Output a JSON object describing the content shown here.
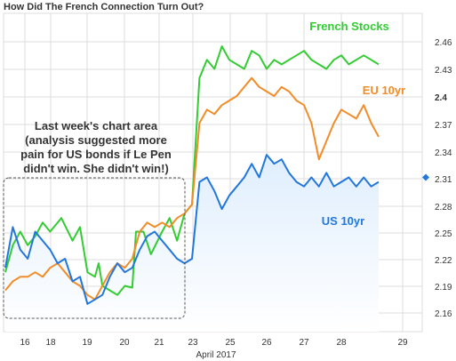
{
  "chart_data": {
    "type": "line",
    "title": "How Did The French Connection Turn Out?",
    "xlabel": "April 2017",
    "x_ticks": [
      "16",
      "18",
      "19",
      "20",
      "21",
      "23",
      "25",
      "26",
      "27",
      "28",
      "29"
    ],
    "y_ticks": [
      "2.46",
      "2.43",
      "2.4",
      "2.37",
      "2.34",
      "2.31",
      "2.28",
      "2.25",
      "2.22",
      "2.19",
      "2.16"
    ],
    "ylim": [
      2.148,
      2.48
    ],
    "xlim": [
      0,
      10.9
    ],
    "current_marker": 2.31,
    "annotation": [
      "Last week's chart area",
      "(analysis suggested more",
      "pain for US bonds if Le Pen",
      "didn't win.  She didn't win!)"
    ],
    "grid": true,
    "colors": {
      "french_stocks": "#33cc33",
      "eu_10yr": "#f28c28",
      "us_10yr": "#2277dd",
      "grid": "#dcdcdc"
    },
    "series": [
      {
        "name": "French Stocks",
        "color": "#33cc33",
        "points": [
          [
            0,
            2.205
          ],
          [
            0.2,
            2.235
          ],
          [
            0.4,
            2.25
          ],
          [
            0.6,
            2.235
          ],
          [
            0.8,
            2.245
          ],
          [
            1.0,
            2.26
          ],
          [
            1.2,
            2.25
          ],
          [
            1.5,
            2.265
          ],
          [
            1.8,
            2.24
          ],
          [
            2.0,
            2.255
          ],
          [
            2.2,
            2.205
          ],
          [
            2.4,
            2.2
          ],
          [
            2.5,
            2.215
          ],
          [
            2.6,
            2.19
          ],
          [
            2.8,
            2.185
          ],
          [
            3.0,
            2.18
          ],
          [
            3.2,
            2.19
          ],
          [
            3.4,
            2.188
          ],
          [
            3.5,
            2.25
          ],
          [
            3.7,
            2.25
          ],
          [
            3.9,
            2.225
          ],
          [
            4.2,
            2.25
          ],
          [
            4.4,
            2.265
          ],
          [
            4.6,
            2.24
          ],
          [
            4.8,
            2.27
          ],
          [
            5.0,
            2.28
          ],
          [
            5.2,
            2.42
          ],
          [
            5.4,
            2.44
          ],
          [
            5.6,
            2.43
          ],
          [
            5.8,
            2.455
          ],
          [
            6.0,
            2.44
          ],
          [
            6.2,
            2.435
          ],
          [
            6.4,
            2.43
          ],
          [
            6.6,
            2.45
          ],
          [
            6.8,
            2.445
          ],
          [
            7.0,
            2.43
          ],
          [
            7.2,
            2.44
          ],
          [
            7.4,
            2.435
          ],
          [
            7.6,
            2.44
          ],
          [
            7.8,
            2.445
          ],
          [
            8.0,
            2.45
          ],
          [
            8.2,
            2.44
          ],
          [
            8.4,
            2.435
          ],
          [
            8.6,
            2.43
          ],
          [
            8.8,
            2.44
          ],
          [
            9.0,
            2.445
          ],
          [
            9.2,
            2.435
          ],
          [
            9.4,
            2.44
          ],
          [
            9.6,
            2.445
          ],
          [
            9.8,
            2.44
          ],
          [
            10.0,
            2.435
          ]
        ]
      },
      {
        "name": "EU 10yr",
        "color": "#f28c28",
        "points": [
          [
            0,
            2.185
          ],
          [
            0.2,
            2.195
          ],
          [
            0.4,
            2.2
          ],
          [
            0.6,
            2.2
          ],
          [
            0.8,
            2.205
          ],
          [
            1.0,
            2.2
          ],
          [
            1.2,
            2.21
          ],
          [
            1.4,
            2.215
          ],
          [
            1.6,
            2.205
          ],
          [
            1.8,
            2.195
          ],
          [
            2.0,
            2.19
          ],
          [
            2.2,
            2.18
          ],
          [
            2.4,
            2.175
          ],
          [
            2.6,
            2.19
          ],
          [
            2.8,
            2.205
          ],
          [
            3.0,
            2.215
          ],
          [
            3.2,
            2.21
          ],
          [
            3.4,
            2.22
          ],
          [
            3.6,
            2.25
          ],
          [
            3.8,
            2.26
          ],
          [
            4.0,
            2.255
          ],
          [
            4.2,
            2.26
          ],
          [
            4.4,
            2.255
          ],
          [
            4.6,
            2.265
          ],
          [
            4.8,
            2.27
          ],
          [
            5.0,
            2.28
          ],
          [
            5.2,
            2.37
          ],
          [
            5.4,
            2.385
          ],
          [
            5.6,
            2.38
          ],
          [
            5.8,
            2.39
          ],
          [
            6.0,
            2.395
          ],
          [
            6.2,
            2.4
          ],
          [
            6.4,
            2.41
          ],
          [
            6.6,
            2.42
          ],
          [
            6.8,
            2.41
          ],
          [
            7.0,
            2.405
          ],
          [
            7.2,
            2.4
          ],
          [
            7.4,
            2.41
          ],
          [
            7.6,
            2.405
          ],
          [
            7.8,
            2.395
          ],
          [
            8.0,
            2.39
          ],
          [
            8.2,
            2.37
          ],
          [
            8.4,
            2.33
          ],
          [
            8.6,
            2.35
          ],
          [
            8.8,
            2.37
          ],
          [
            9.0,
            2.385
          ],
          [
            9.2,
            2.38
          ],
          [
            9.4,
            2.375
          ],
          [
            9.6,
            2.39
          ],
          [
            9.8,
            2.37
          ],
          [
            10.0,
            2.355
          ]
        ]
      },
      {
        "name": "US 10yr",
        "color": "#2277dd",
        "points": [
          [
            0,
            2.21
          ],
          [
            0.2,
            2.255
          ],
          [
            0.4,
            2.23
          ],
          [
            0.6,
            2.22
          ],
          [
            0.8,
            2.25
          ],
          [
            1.0,
            2.24
          ],
          [
            1.2,
            2.23
          ],
          [
            1.4,
            2.215
          ],
          [
            1.6,
            2.22
          ],
          [
            1.8,
            2.195
          ],
          [
            2.0,
            2.2
          ],
          [
            2.2,
            2.17
          ],
          [
            2.4,
            2.175
          ],
          [
            2.6,
            2.18
          ],
          [
            2.8,
            2.2
          ],
          [
            3.0,
            2.215
          ],
          [
            3.2,
            2.205
          ],
          [
            3.4,
            2.21
          ],
          [
            3.6,
            2.23
          ],
          [
            3.8,
            2.245
          ],
          [
            4.0,
            2.25
          ],
          [
            4.2,
            2.24
          ],
          [
            4.4,
            2.23
          ],
          [
            4.6,
            2.22
          ],
          [
            4.8,
            2.215
          ],
          [
            5.0,
            2.22
          ],
          [
            5.2,
            2.305
          ],
          [
            5.4,
            2.31
          ],
          [
            5.6,
            2.295
          ],
          [
            5.8,
            2.275
          ],
          [
            6.0,
            2.29
          ],
          [
            6.2,
            2.3
          ],
          [
            6.4,
            2.31
          ],
          [
            6.6,
            2.325
          ],
          [
            6.8,
            2.31
          ],
          [
            7.0,
            2.335
          ],
          [
            7.2,
            2.325
          ],
          [
            7.4,
            2.33
          ],
          [
            7.6,
            2.315
          ],
          [
            7.8,
            2.305
          ],
          [
            8.0,
            2.3
          ],
          [
            8.2,
            2.31
          ],
          [
            8.4,
            2.3
          ],
          [
            8.6,
            2.315
          ],
          [
            8.8,
            2.3
          ],
          [
            9.0,
            2.305
          ],
          [
            9.2,
            2.31
          ],
          [
            9.4,
            2.3
          ],
          [
            9.6,
            2.31
          ],
          [
            9.8,
            2.3
          ],
          [
            10.0,
            2.305
          ]
        ]
      }
    ]
  }
}
